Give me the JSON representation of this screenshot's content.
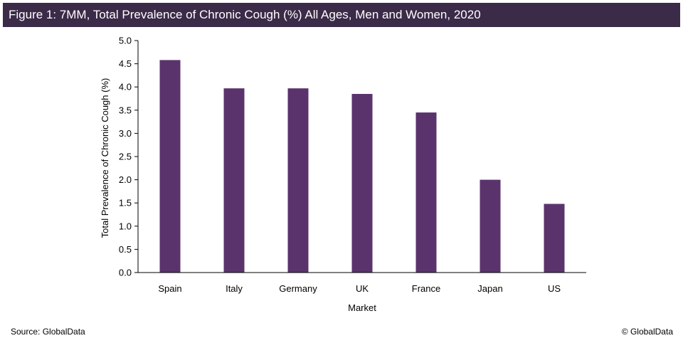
{
  "header": {
    "title": "Figure 1: 7MM, Total Prevalence of Chronic Cough (%) All Ages, Men and Women, 2020"
  },
  "footer": {
    "source": "Source: GlobalData",
    "copyright": "© GlobalData"
  },
  "colors": {
    "bar": "#5b336c",
    "title_bg": "#3b2a48",
    "axis": "#000000"
  },
  "chart_data": {
    "type": "bar",
    "title": "Figure 1: 7MM, Total Prevalence of Chronic Cough (%) All Ages, Men and Women, 2020",
    "xlabel": "Market",
    "ylabel": "Total Prevalence of Chronic Cough (%)",
    "categories": [
      "Spain",
      "Italy",
      "Germany",
      "UK",
      "France",
      "Japan",
      "US"
    ],
    "values": [
      4.58,
      3.97,
      3.97,
      3.85,
      3.45,
      2.0,
      1.48
    ],
    "ylim": [
      0,
      5.0
    ],
    "yticks": [
      "0.0",
      "0.5",
      "1.0",
      "1.5",
      "2.0",
      "2.5",
      "3.0",
      "3.5",
      "4.0",
      "4.5",
      "5.0"
    ],
    "grid": false,
    "legend": "none"
  }
}
